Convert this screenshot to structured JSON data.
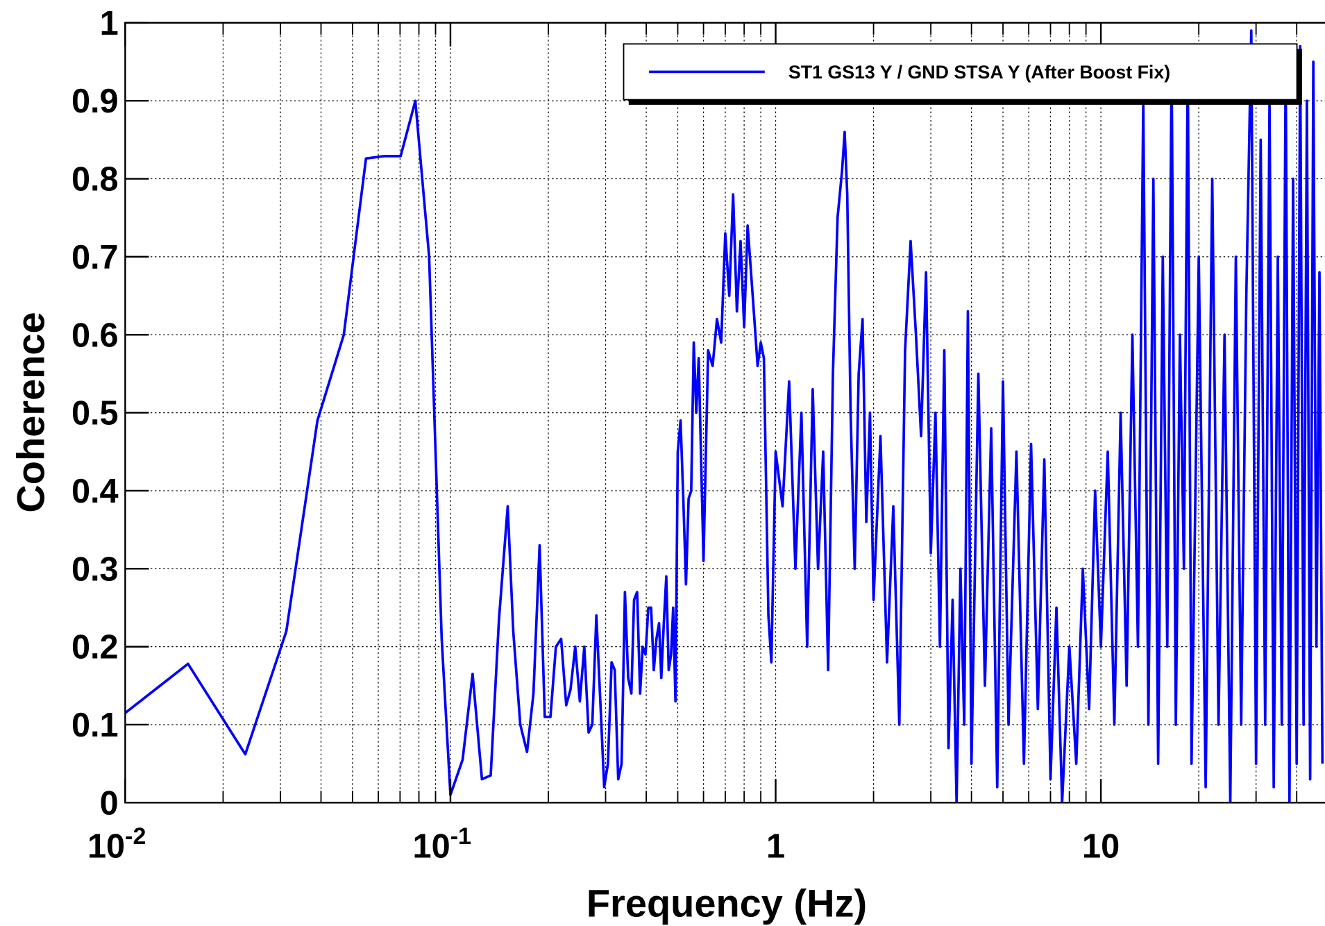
{
  "chart_data": {
    "type": "line",
    "x_label": "Frequency (Hz)",
    "y_label": "Coherence",
    "log_x": true,
    "grid": true,
    "legend_position": "top-right",
    "xlim": [
      0.01,
      50
    ],
    "ylim": [
      0,
      1
    ],
    "xticks": [
      {
        "value": 0.01,
        "label": "10",
        "sup": "-2"
      },
      {
        "value": 0.1,
        "label": "10",
        "sup": "-1"
      },
      1,
      10
    ],
    "xminorticks": [
      0.02,
      0.03,
      0.04,
      0.05,
      0.06,
      0.07,
      0.08,
      0.09,
      0.2,
      0.3,
      0.4,
      0.5,
      0.6,
      0.7,
      0.8,
      0.9,
      2,
      3,
      4,
      5,
      6,
      7,
      8,
      9,
      20,
      30,
      40
    ],
    "yticks": [
      0,
      0.1,
      0.2,
      0.3,
      0.4,
      0.5,
      0.6,
      0.7,
      0.8,
      0.9,
      1
    ],
    "series": [
      {
        "name": "ST1 GS13 Y / GND STSA Y (After Boost Fix)",
        "color": "#0000ff",
        "x": [
          0.01,
          0.0156,
          0.0234,
          0.0313,
          0.039,
          0.047,
          0.055,
          0.0625,
          0.0703,
          0.078,
          0.086,
          0.094,
          0.1,
          0.109,
          0.117,
          0.125,
          0.133,
          0.141,
          0.15,
          0.156,
          0.164,
          0.172,
          0.18,
          0.188,
          0.195,
          0.203,
          0.211,
          0.219,
          0.227,
          0.234,
          0.242,
          0.25,
          0.258,
          0.266,
          0.273,
          0.281,
          0.289,
          0.297,
          0.305,
          0.313,
          0.32,
          0.328,
          0.336,
          0.344,
          0.352,
          0.36,
          0.367,
          0.375,
          0.383,
          0.39,
          0.398,
          0.406,
          0.414,
          0.422,
          0.43,
          0.438,
          0.445,
          0.453,
          0.461,
          0.469,
          0.477,
          0.484,
          0.492,
          0.5,
          0.51,
          0.52,
          0.53,
          0.54,
          0.55,
          0.56,
          0.57,
          0.58,
          0.6,
          0.62,
          0.64,
          0.66,
          0.68,
          0.7,
          0.72,
          0.74,
          0.76,
          0.78,
          0.8,
          0.82,
          0.84,
          0.86,
          0.88,
          0.9,
          0.92,
          0.95,
          0.97,
          1.0,
          1.05,
          1.1,
          1.15,
          1.2,
          1.25,
          1.3,
          1.35,
          1.4,
          1.45,
          1.5,
          1.55,
          1.6,
          1.63,
          1.66,
          1.7,
          1.75,
          1.8,
          1.85,
          1.9,
          1.95,
          2.0,
          2.1,
          2.2,
          2.3,
          2.4,
          2.5,
          2.6,
          2.7,
          2.8,
          2.9,
          3.0,
          3.1,
          3.2,
          3.3,
          3.4,
          3.5,
          3.6,
          3.7,
          3.8,
          3.9,
          4.0,
          4.2,
          4.4,
          4.6,
          4.8,
          5.0,
          5.2,
          5.5,
          5.8,
          6.1,
          6.4,
          6.7,
          7.0,
          7.3,
          7.6,
          8.0,
          8.4,
          8.8,
          9.2,
          9.6,
          10,
          10.5,
          11,
          11.5,
          12,
          12.5,
          13,
          13.5,
          14,
          14.5,
          15,
          15.5,
          16,
          16.5,
          17,
          17.5,
          18,
          18.5,
          19,
          20,
          21,
          22,
          23,
          24,
          25,
          26,
          27,
          28,
          29,
          30,
          31,
          32,
          33,
          34,
          35,
          36,
          37,
          38,
          39,
          40,
          41,
          42,
          43,
          44,
          45,
          46,
          47,
          48
        ],
        "values": [
          0.115,
          0.178,
          0.062,
          0.22,
          0.49,
          0.6,
          0.826,
          0.829,
          0.829,
          0.9,
          0.7,
          0.21,
          0.01,
          0.055,
          0.165,
          0.03,
          0.035,
          0.235,
          0.38,
          0.22,
          0.1,
          0.065,
          0.14,
          0.33,
          0.11,
          0.11,
          0.2,
          0.21,
          0.125,
          0.145,
          0.2,
          0.13,
          0.2,
          0.09,
          0.1,
          0.24,
          0.13,
          0.02,
          0.05,
          0.18,
          0.17,
          0.03,
          0.05,
          0.27,
          0.16,
          0.14,
          0.26,
          0.27,
          0.14,
          0.2,
          0.19,
          0.25,
          0.25,
          0.17,
          0.21,
          0.23,
          0.16,
          0.23,
          0.29,
          0.17,
          0.19,
          0.25,
          0.13,
          0.45,
          0.49,
          0.39,
          0.28,
          0.39,
          0.4,
          0.59,
          0.5,
          0.57,
          0.31,
          0.58,
          0.56,
          0.62,
          0.59,
          0.73,
          0.65,
          0.78,
          0.63,
          0.72,
          0.61,
          0.74,
          0.68,
          0.62,
          0.56,
          0.59,
          0.57,
          0.24,
          0.18,
          0.45,
          0.38,
          0.54,
          0.3,
          0.5,
          0.2,
          0.53,
          0.3,
          0.45,
          0.17,
          0.55,
          0.75,
          0.81,
          0.86,
          0.78,
          0.5,
          0.3,
          0.55,
          0.62,
          0.36,
          0.5,
          0.26,
          0.47,
          0.18,
          0.38,
          0.1,
          0.58,
          0.72,
          0.6,
          0.47,
          0.68,
          0.32,
          0.5,
          0.2,
          0.58,
          0.07,
          0.26,
          0.0,
          0.3,
          0.1,
          0.63,
          0.05,
          0.55,
          0.15,
          0.48,
          0.02,
          0.54,
          0.1,
          0.45,
          0.05,
          0.46,
          0.12,
          0.44,
          0.03,
          0.25,
          0.0,
          0.2,
          0.05,
          0.3,
          0.12,
          0.4,
          0.2,
          0.45,
          0.1,
          0.5,
          0.15,
          0.6,
          0.2,
          0.9,
          0.1,
          0.8,
          0.05,
          0.7,
          0.2,
          0.95,
          0.1,
          0.6,
          0.3,
          0.95,
          0.05,
          0.7,
          0.02,
          0.8,
          0.1,
          0.6,
          0.0,
          0.7,
          0.1,
          0.65,
          0.99,
          0.05,
          0.85,
          0.1,
          0.9,
          0.02,
          0.7,
          0.1,
          0.95,
          0.0,
          0.8,
          0.05,
          0.97,
          0.1,
          0.9,
          0.03,
          0.95,
          0.2,
          0.68,
          0.05
        ]
      }
    ]
  }
}
